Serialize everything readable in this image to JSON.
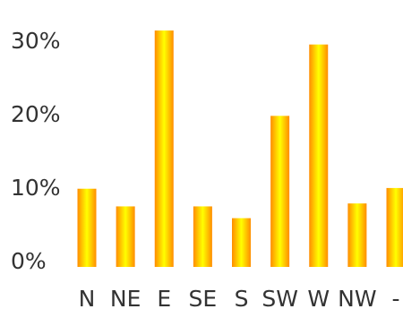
{
  "chart_data": {
    "type": "bar",
    "title": "",
    "xlabel": "",
    "ylabel": "",
    "categories": [
      "N",
      "NE",
      "E",
      "SE",
      "S",
      "SW",
      "W",
      "NW",
      "-"
    ],
    "values": [
      9.8,
      7.4,
      31.3,
      7.4,
      5.8,
      19.7,
      29.4,
      7.8,
      9.9
    ],
    "y_ticks": [
      "0%",
      "10%",
      "20%",
      "30%"
    ],
    "y_tick_values": [
      0,
      10,
      20,
      30
    ],
    "ylim": [
      -3.5,
      33.5
    ],
    "grid": false,
    "legend": "none",
    "colors": {
      "bar_center": "#ffff00",
      "bar_edge": "#ff8c00",
      "text": "#333333"
    }
  }
}
